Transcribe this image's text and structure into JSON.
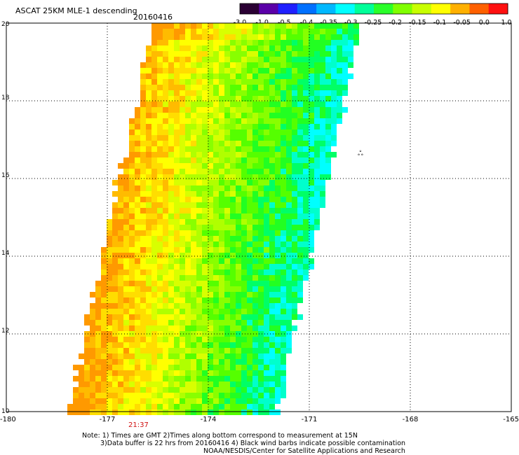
{
  "header": {
    "title": "ASCAT 25KM MLE-1 descending",
    "date": "20160416"
  },
  "colorbar": {
    "labels": [
      "-3.0",
      "-1.0",
      "-0.5",
      "-0.4",
      "-0.35",
      "-0.3",
      "-0.25",
      "-0.2",
      "-0.15",
      "-0.1",
      "-0.05",
      "0.0",
      "1.0"
    ],
    "colors": [
      "#2a0033",
      "#5a00a8",
      "#1f1fff",
      "#0070ff",
      "#00b8ff",
      "#00ffff",
      "#00ff99",
      "#2aff2a",
      "#80ff00",
      "#c8ff00",
      "#ffff00",
      "#ffb000",
      "#ff6000",
      "#ff1010"
    ]
  },
  "map": {
    "lon_range": [
      -180,
      -165
    ],
    "lat_range": [
      10,
      20
    ],
    "lon_ticks": [
      "-180",
      "-177",
      "-174",
      "-171",
      "-168",
      "-165"
    ],
    "lat_ticks": [
      "20",
      "18",
      "16",
      "14",
      "12",
      "10"
    ],
    "time_label": "21:37",
    "time_color": "#d01010",
    "marker_symbol": "ஃ",
    "swath_color_field": "MLE anomaly, roughly -0.3 (cyan) to 0.05 (orange); values vary smoothly within the swath"
  },
  "notes": {
    "line1": "Note: 1) Times are GMT 2)Times along bottom correspond to measurement at 15N",
    "line2": "3)Data buffer is 22 hrs from 20160416 4) Black wind barbs indicate possible contamination",
    "line3": "NOAA/NESDIS/Center for Satellite Applications and Research"
  }
}
